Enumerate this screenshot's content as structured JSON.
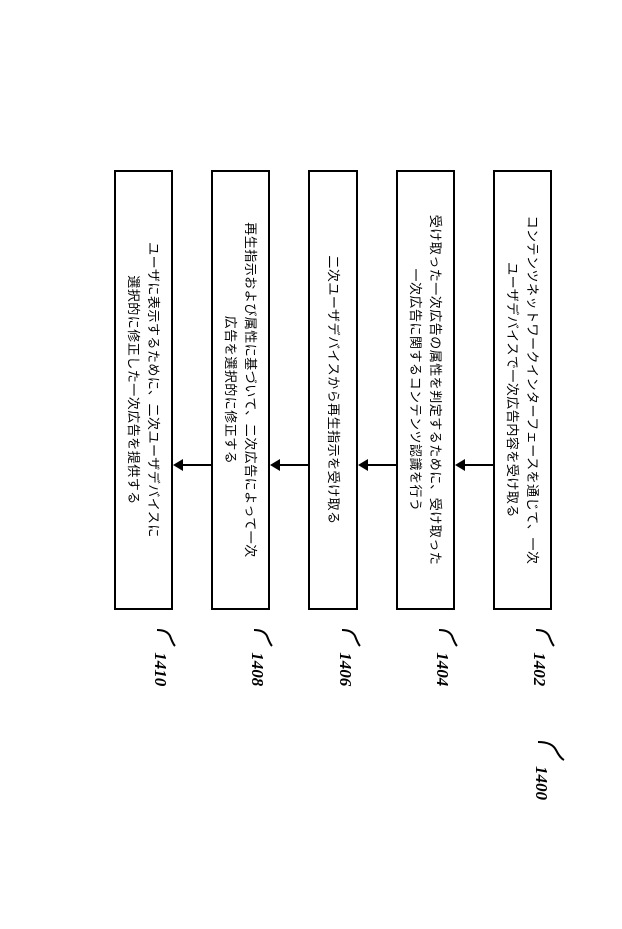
{
  "diagram": {
    "title_number": "1400",
    "steps": [
      {
        "id": "1402",
        "text": "コンテンツネットワークインターフェースを通じて、一次\nユーザデバイスで一次広告内容を受け取る"
      },
      {
        "id": "1404",
        "text": "受け取った一次広告の属性を判定するために、受け取った\n一次広告に関するコンテンツ認識を行う"
      },
      {
        "id": "1406",
        "text": "二次ユーザデバイスから再生指示を受け取る"
      },
      {
        "id": "1408",
        "text": "再生指示および属性に基づいて、二次広告によって一次\n広告を選択的に修正する"
      },
      {
        "id": "1410",
        "text": "ユーザに表示するために、二次ユーザデバイスに\n選択的に修正した一次広告を提供する"
      }
    ],
    "arrow_length": 28,
    "box_border_color": "#000000",
    "background_color": "#ffffff",
    "font_size_box": 13,
    "font_size_label": 17
  }
}
